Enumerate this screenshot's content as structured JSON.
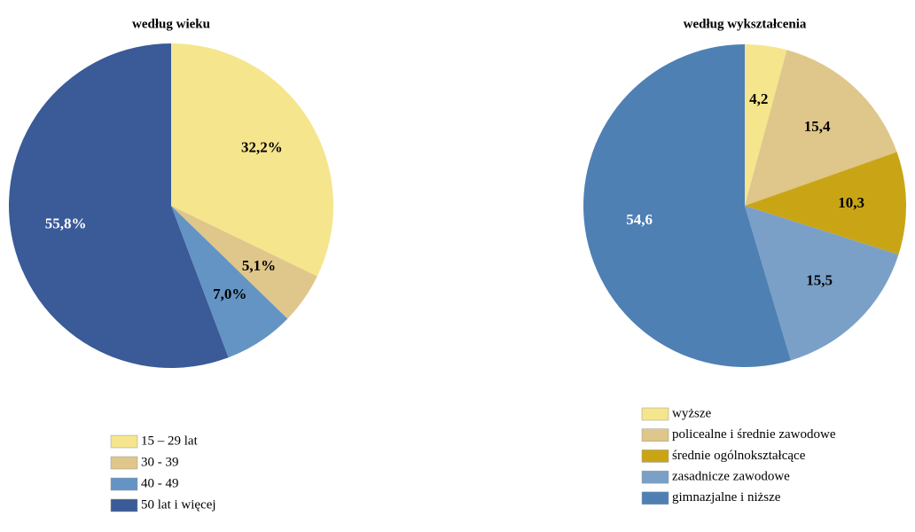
{
  "chart_data": [
    {
      "type": "pie",
      "title": "według wieku",
      "categories": [
        "15 – 29 lat",
        "30 - 39",
        "40 - 49",
        "50 lat i więcej"
      ],
      "values": [
        32.2,
        5.1,
        7.0,
        55.8
      ],
      "value_labels": [
        "32,2%",
        "5,1%",
        "7,0%",
        "55,8%"
      ],
      "colors": [
        "#f5e58c",
        "#dfc68a",
        "#6494c4",
        "#3a5a98"
      ]
    },
    {
      "type": "pie",
      "title": "według wykształcenia",
      "categories": [
        "wyższe",
        "policealne i średnie zawodowe",
        "średnie ogólnokształcące",
        "zasadnicze zawodowe",
        "gimnazjalne i niższe"
      ],
      "values": [
        4.2,
        15.4,
        10.3,
        15.5,
        54.6
      ],
      "value_labels": [
        "4,2",
        "15,4",
        "10,3",
        "15,5",
        "54,6"
      ],
      "colors": [
        "#f5e58c",
        "#dfc68a",
        "#c9a516",
        "#7aa0c8",
        "#4e80b4"
      ]
    }
  ]
}
